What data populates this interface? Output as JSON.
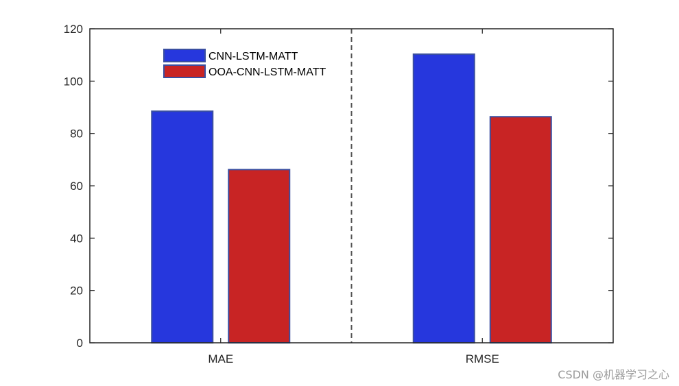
{
  "chart_data": {
    "type": "bar",
    "categories": [
      "MAE",
      "RMSE"
    ],
    "series": [
      {
        "name": "CNN-LSTM-MATT",
        "values": [
          88.5,
          110.3
        ],
        "color": "#2637DD"
      },
      {
        "name": "OOA-CNN-LSTM-MATT",
        "values": [
          66.2,
          86.4
        ],
        "color": "#C82424"
      }
    ],
    "yticks": [
      0,
      20,
      40,
      60,
      80,
      100,
      120
    ],
    "ylim": [
      0,
      120
    ],
    "legend_position": "top-left",
    "divider": "dashed vertical line between categories",
    "bar_edge_color": "#3A4FA0"
  },
  "watermark": "CSDN @机器学习之心"
}
